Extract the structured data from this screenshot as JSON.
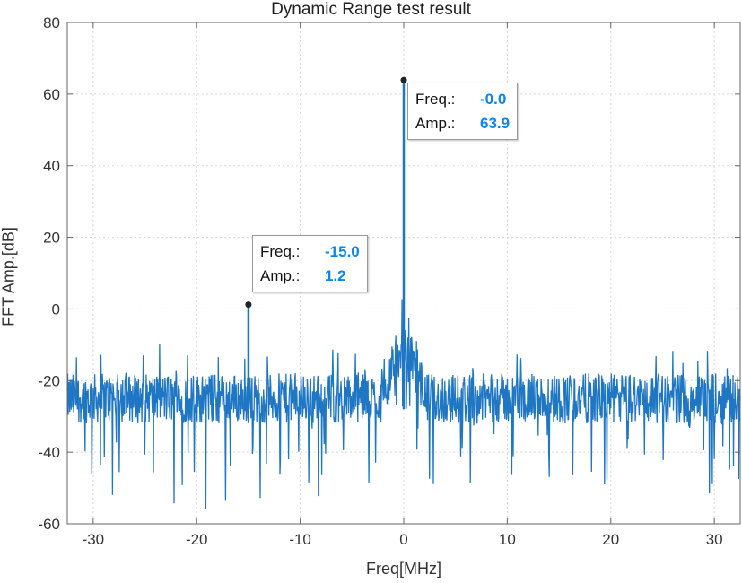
{
  "chart_data": {
    "type": "line",
    "title": "Dynamic Range test result",
    "xlabel": "Freq[MHz]",
    "ylabel": "FFT Amp.[dB]",
    "xlim": [
      -32.5,
      32.5
    ],
    "ylim": [
      -60,
      80
    ],
    "x_ticks": [
      -30,
      -20,
      -10,
      0,
      10,
      20,
      30
    ],
    "y_ticks": [
      -60,
      -40,
      -20,
      0,
      20,
      40,
      60,
      80
    ],
    "grid": true,
    "line_color": "#1f77c4",
    "noise_floor_db": -25,
    "series": [
      {
        "peaks": [
          {
            "x": -15.0,
            "y": 1.2
          },
          {
            "x": 0.0,
            "y": 63.9
          }
        ]
      }
    ],
    "datatips": [
      {
        "freq_label": "Freq.:",
        "freq": "-15.0",
        "amp_label": "Amp.:",
        "amp": "1.2"
      },
      {
        "freq_label": "Freq.:",
        "freq": "-0.0",
        "amp_label": "Amp.:",
        "amp": "63.9"
      }
    ]
  }
}
